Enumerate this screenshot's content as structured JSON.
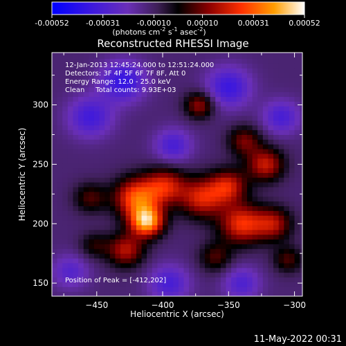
{
  "chart_data": {
    "type": "heatmap",
    "title": "Reconstructed RHESSI Image",
    "xlabel": "Heliocentric X (arcsec)",
    "ylabel": "Heliocentric Y (arcsec)",
    "xlim": [
      -484,
      -294
    ],
    "ylim": [
      139,
      344
    ],
    "x_ticks": [
      -450,
      -400,
      -350,
      -300
    ],
    "y_ticks": [
      150,
      200,
      250,
      300
    ],
    "colorbar": {
      "range": [
        -0.00052,
        0.00052
      ],
      "ticks": [
        -0.00052,
        -0.00031,
        -0.0001,
        0.0001,
        0.00031,
        0.00052
      ],
      "tick_labels": [
        "-0.00052",
        "-0.00031",
        "-0.00010",
        "0.00010",
        "0.00031",
        "0.00052"
      ],
      "label_main": "(photons cm",
      "label_exp1": "-2",
      "label_mid1": " s",
      "label_exp2": "-1",
      "label_mid2": " asec",
      "label_exp3": "-2",
      "label_end": ")"
    },
    "annotations": [
      "12-Jan-2013 12:45:24.000 to 12:51:24.000",
      "Detectors: 3F 4F 5F 6F 7F 8F, Att 0",
      "Energy Range: 12.0 - 25.0 keV",
      "Clean     Total counts: 9.93E+03"
    ],
    "peak_label": "Position of Peak = [-412,202]",
    "peak": [
      -412,
      202
    ],
    "sources": [
      {
        "x": -412,
        "y": 202,
        "amp": 0.00052,
        "sigma": 9
      },
      {
        "x": -420,
        "y": 222,
        "amp": 0.00041,
        "sigma": 12
      },
      {
        "x": -398,
        "y": 232,
        "amp": 0.00031,
        "sigma": 11
      },
      {
        "x": -428,
        "y": 178,
        "amp": 0.00029,
        "sigma": 10
      },
      {
        "x": -370,
        "y": 222,
        "amp": 0.00033,
        "sigma": 12
      },
      {
        "x": -350,
        "y": 232,
        "amp": 0.0003,
        "sigma": 10
      },
      {
        "x": -340,
        "y": 200,
        "amp": 0.00036,
        "sigma": 12
      },
      {
        "x": -316,
        "y": 200,
        "amp": 0.00027,
        "sigma": 10
      },
      {
        "x": -322,
        "y": 250,
        "amp": 0.00031,
        "sigma": 10
      },
      {
        "x": -372,
        "y": 300,
        "amp": 0.00026,
        "sigma": 8
      },
      {
        "x": -338,
        "y": 270,
        "amp": 0.00022,
        "sigma": 9
      },
      {
        "x": -455,
        "y": 222,
        "amp": 0.00018,
        "sigma": 9
      },
      {
        "x": -452,
        "y": 182,
        "amp": 0.00014,
        "sigma": 8
      },
      {
        "x": -360,
        "y": 172,
        "amp": 0.00018,
        "sigma": 9
      },
      {
        "x": -305,
        "y": 170,
        "amp": 0.00018,
        "sigma": 8
      },
      {
        "x": -430,
        "y": 320,
        "amp": -0.00026,
        "sigma": 12
      },
      {
        "x": -455,
        "y": 290,
        "amp": -0.00022,
        "sigma": 12
      },
      {
        "x": -392,
        "y": 266,
        "amp": -0.0002,
        "sigma": 10
      },
      {
        "x": -350,
        "y": 315,
        "amp": -0.00024,
        "sigma": 12
      },
      {
        "x": -310,
        "y": 290,
        "amp": -0.0002,
        "sigma": 10
      },
      {
        "x": -395,
        "y": 150,
        "amp": -0.0002,
        "sigma": 11
      },
      {
        "x": -340,
        "y": 150,
        "amp": -0.00018,
        "sigma": 10
      },
      {
        "x": -470,
        "y": 160,
        "amp": -0.00016,
        "sigma": 10
      }
    ]
  },
  "timestamp": "11-May-2022 00:31"
}
